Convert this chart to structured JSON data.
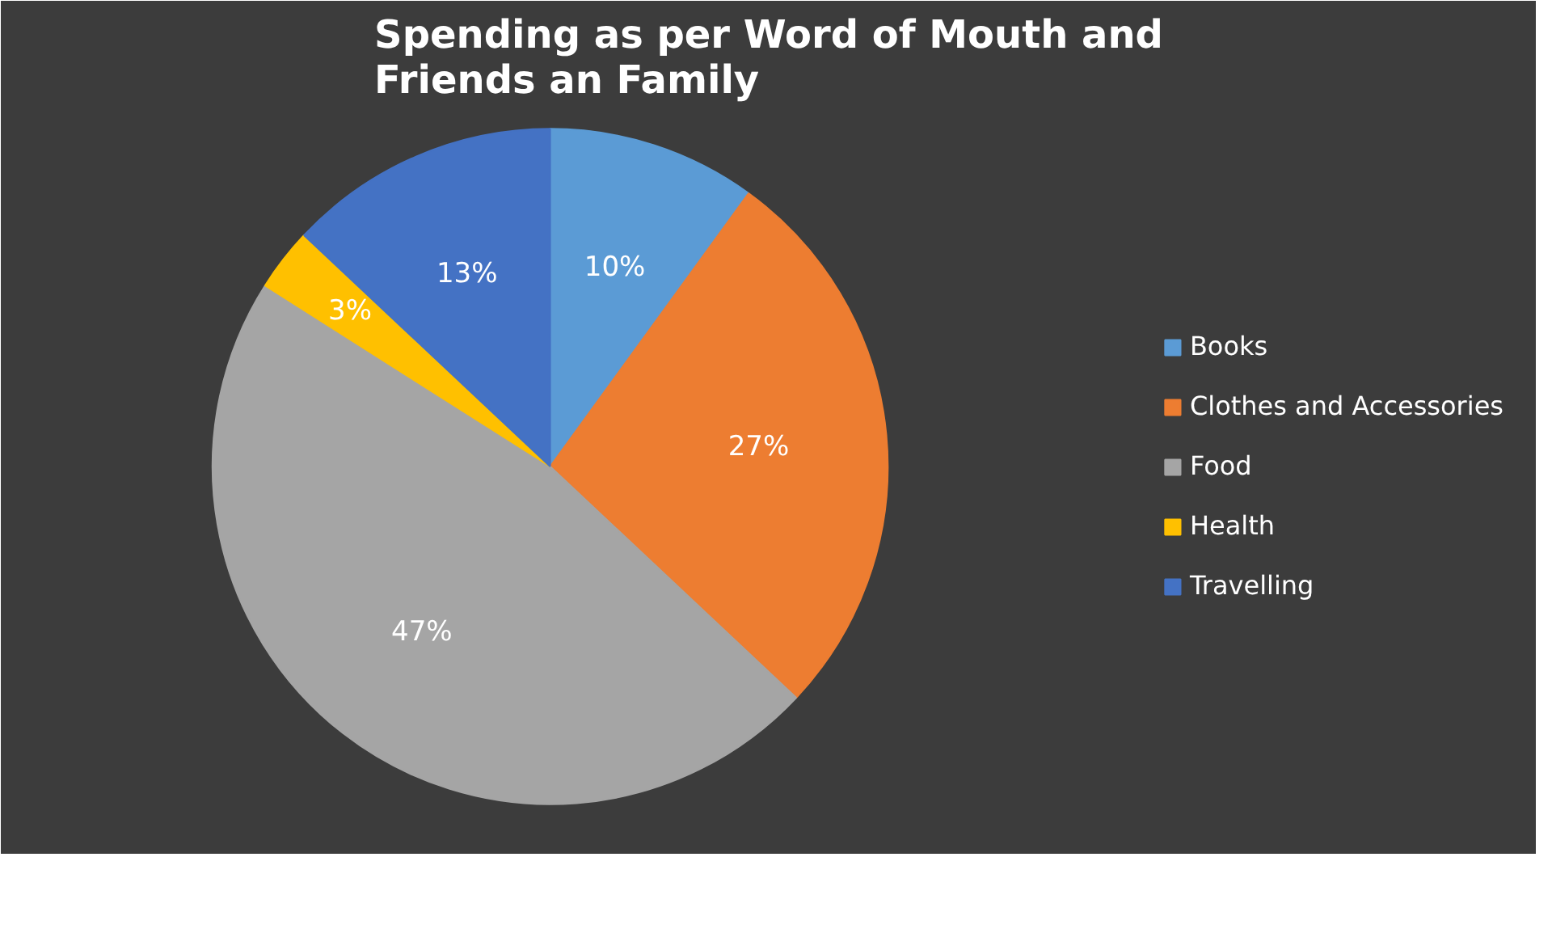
{
  "chart_data": {
    "type": "pie",
    "title": "Spending as per Word of Mouth and Friends an Family",
    "categories": [
      "Books",
      "Clothes and Accessories",
      "Food",
      "Health",
      "Travelling"
    ],
    "values": [
      10,
      27,
      47,
      3,
      13
    ],
    "colors": [
      "#5b9bd5",
      "#ed7d31",
      "#a5a5a5",
      "#ffc000",
      "#4472c4"
    ],
    "value_labels": [
      "10%",
      "27%",
      "47%",
      "3%",
      "13%"
    ],
    "legend": "right"
  }
}
